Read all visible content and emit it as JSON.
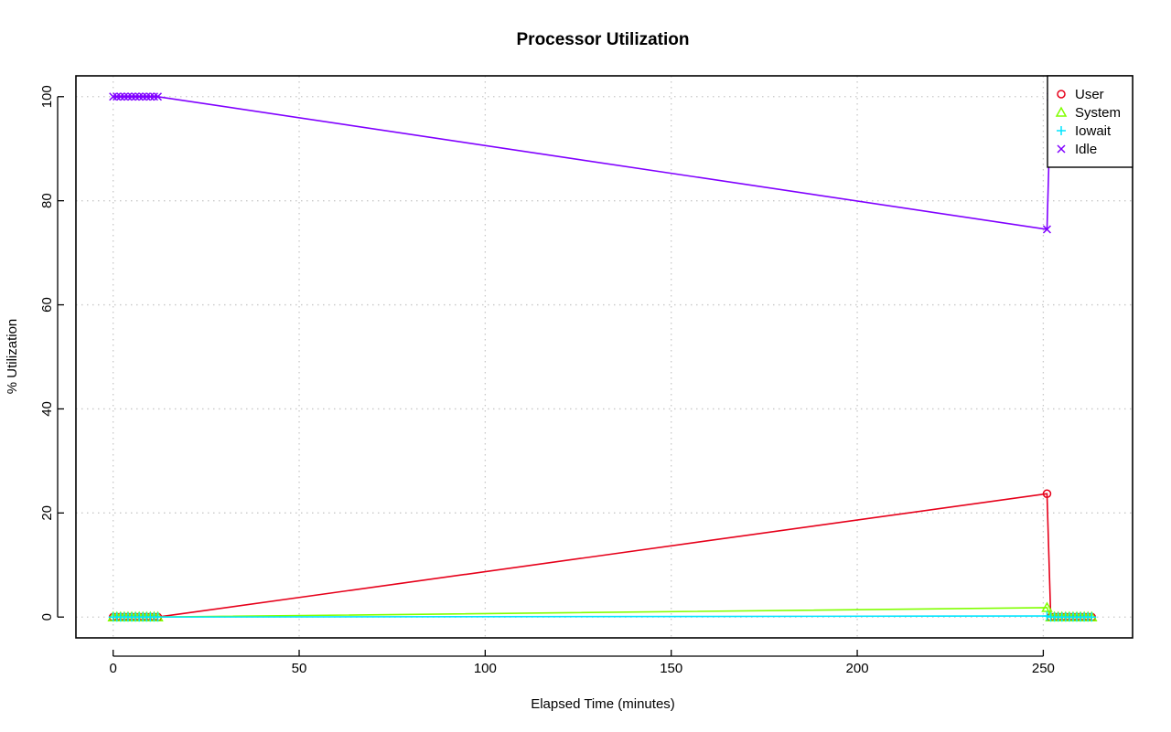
{
  "chart_data": {
    "type": "line",
    "title": "Processor Utilization",
    "xlabel": "Elapsed Time (minutes)",
    "ylabel": "% Utilization",
    "xlim": [
      -10,
      274
    ],
    "ylim": [
      -4,
      104
    ],
    "xticks": [
      0,
      50,
      100,
      150,
      200,
      250
    ],
    "yticks": [
      0,
      20,
      40,
      60,
      80,
      100
    ],
    "grid": true,
    "legend_position": "top-right",
    "series": [
      {
        "name": "User",
        "color": "#e6001a",
        "marker": "circle",
        "x": [
          0,
          1,
          2,
          3,
          4,
          5,
          6,
          7,
          8,
          9,
          10,
          11,
          12,
          251,
          252,
          253,
          254,
          255,
          256,
          257,
          258,
          259,
          260,
          261,
          262,
          263
        ],
        "y": [
          0,
          0,
          0,
          0,
          0,
          0,
          0,
          0,
          0,
          0,
          0,
          0,
          0,
          23.7,
          0,
          0,
          0,
          0,
          0,
          0,
          0,
          0,
          0,
          0,
          0,
          0
        ]
      },
      {
        "name": "System",
        "color": "#80ff00",
        "marker": "triangle",
        "x": [
          0,
          1,
          2,
          3,
          4,
          5,
          6,
          7,
          8,
          9,
          10,
          11,
          12,
          251,
          252,
          253,
          254,
          255,
          256,
          257,
          258,
          259,
          260,
          261,
          262,
          263
        ],
        "y": [
          0,
          0,
          0,
          0,
          0,
          0,
          0,
          0,
          0,
          0,
          0,
          0,
          0,
          1.8,
          0,
          0,
          0,
          0,
          0,
          0,
          0,
          0,
          0,
          0,
          0,
          0
        ]
      },
      {
        "name": "Iowait",
        "color": "#00e5ff",
        "marker": "plus",
        "x": [
          0,
          1,
          2,
          3,
          4,
          5,
          6,
          7,
          8,
          9,
          10,
          11,
          12,
          251,
          252,
          253,
          254,
          255,
          256,
          257,
          258,
          259,
          260,
          261,
          262,
          263
        ],
        "y": [
          0,
          0,
          0,
          0,
          0,
          0,
          0,
          0,
          0,
          0,
          0,
          0,
          0,
          0.2,
          0,
          0,
          0,
          0,
          0,
          0,
          0,
          0,
          0,
          0,
          0,
          0
        ]
      },
      {
        "name": "Idle",
        "color": "#8000ff",
        "marker": "cross",
        "x": [
          0,
          1,
          2,
          3,
          4,
          5,
          6,
          7,
          8,
          9,
          10,
          11,
          12,
          251,
          252,
          253,
          254,
          255,
          256,
          257,
          258,
          259,
          260,
          261,
          262,
          263
        ],
        "y": [
          100,
          100,
          100,
          100,
          100,
          100,
          100,
          100,
          100,
          100,
          100,
          100,
          100,
          74.5,
          100,
          100,
          100,
          100,
          100,
          100,
          100,
          100,
          100,
          100,
          100,
          100
        ]
      }
    ]
  }
}
